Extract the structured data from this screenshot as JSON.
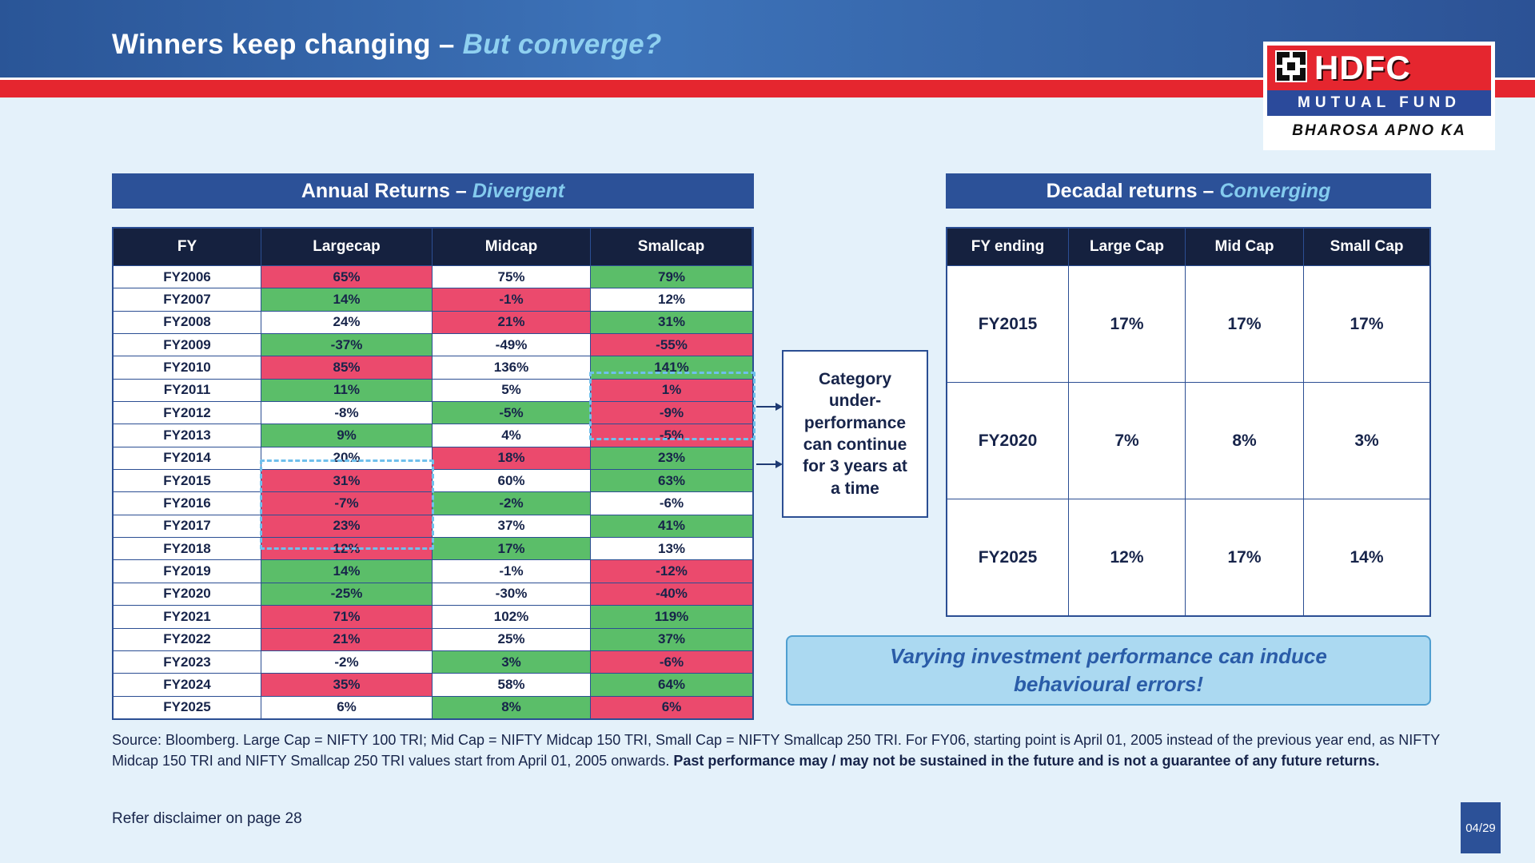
{
  "header": {
    "title_plain": "Winners keep changing – ",
    "title_accent": "But converge?",
    "logo": {
      "line1": "HDFC",
      "line2": "MUTUAL FUND",
      "line3": "BHAROSA APNO KA"
    }
  },
  "annual_table": {
    "title_plain": "Annual Returns –",
    "title_accent": "Divergent",
    "columns": [
      "FY",
      "Largecap",
      "Midcap",
      "Smallcap"
    ],
    "rows": [
      {
        "fy": "FY2006",
        "values": [
          "65%",
          "75%",
          "79%"
        ],
        "tones": [
          "red",
          "white",
          "green"
        ]
      },
      {
        "fy": "FY2007",
        "values": [
          "14%",
          "-1%",
          "12%"
        ],
        "tones": [
          "green",
          "red",
          "white"
        ]
      },
      {
        "fy": "FY2008",
        "values": [
          "24%",
          "21%",
          "31%"
        ],
        "tones": [
          "white",
          "red",
          "green"
        ]
      },
      {
        "fy": "FY2009",
        "values": [
          "-37%",
          "-49%",
          "-55%"
        ],
        "tones": [
          "green",
          "white",
          "red"
        ]
      },
      {
        "fy": "FY2010",
        "values": [
          "85%",
          "136%",
          "141%"
        ],
        "tones": [
          "red",
          "white",
          "green"
        ]
      },
      {
        "fy": "FY2011",
        "values": [
          "11%",
          "5%",
          "1%"
        ],
        "tones": [
          "green",
          "white",
          "red"
        ]
      },
      {
        "fy": "FY2012",
        "values": [
          "-8%",
          "-5%",
          "-9%"
        ],
        "tones": [
          "white",
          "green",
          "red"
        ]
      },
      {
        "fy": "FY2013",
        "values": [
          "9%",
          "4%",
          "-5%"
        ],
        "tones": [
          "green",
          "white",
          "red"
        ]
      },
      {
        "fy": "FY2014",
        "values": [
          "20%",
          "18%",
          "23%"
        ],
        "tones": [
          "white",
          "red",
          "green"
        ]
      },
      {
        "fy": "FY2015",
        "values": [
          "31%",
          "60%",
          "63%"
        ],
        "tones": [
          "red",
          "white",
          "green"
        ]
      },
      {
        "fy": "FY2016",
        "values": [
          "-7%",
          "-2%",
          "-6%"
        ],
        "tones": [
          "red",
          "green",
          "white"
        ]
      },
      {
        "fy": "FY2017",
        "values": [
          "23%",
          "37%",
          "41%"
        ],
        "tones": [
          "red",
          "white",
          "green"
        ]
      },
      {
        "fy": "FY2018",
        "values": [
          "12%",
          "17%",
          "13%"
        ],
        "tones": [
          "red",
          "green",
          "white"
        ]
      },
      {
        "fy": "FY2019",
        "values": [
          "14%",
          "-1%",
          "-12%"
        ],
        "tones": [
          "green",
          "white",
          "red"
        ]
      },
      {
        "fy": "FY2020",
        "values": [
          "-25%",
          "-30%",
          "-40%"
        ],
        "tones": [
          "green",
          "white",
          "red"
        ]
      },
      {
        "fy": "FY2021",
        "values": [
          "71%",
          "102%",
          "119%"
        ],
        "tones": [
          "red",
          "white",
          "green"
        ]
      },
      {
        "fy": "FY2022",
        "values": [
          "21%",
          "25%",
          "37%"
        ],
        "tones": [
          "red",
          "white",
          "green"
        ]
      },
      {
        "fy": "FY2023",
        "values": [
          "-2%",
          "3%",
          "-6%"
        ],
        "tones": [
          "white",
          "green",
          "red"
        ]
      },
      {
        "fy": "FY2024",
        "values": [
          "35%",
          "58%",
          "64%"
        ],
        "tones": [
          "red",
          "white",
          "green"
        ]
      },
      {
        "fy": "FY2025",
        "values": [
          "6%",
          "8%",
          "6%"
        ],
        "tones": [
          "white",
          "green",
          "red"
        ]
      }
    ]
  },
  "decadal_table": {
    "title_plain": "Decadal returns –",
    "title_accent": "Converging",
    "columns": [
      "FY ending",
      "Large Cap",
      "Mid Cap",
      "Small Cap"
    ],
    "rows": [
      {
        "fy": "FY2015",
        "values": [
          "17%",
          "17%",
          "17%"
        ]
      },
      {
        "fy": "FY2020",
        "values": [
          "7%",
          "8%",
          "3%"
        ]
      },
      {
        "fy": "FY2025",
        "values": [
          "12%",
          "17%",
          "14%"
        ]
      }
    ]
  },
  "callout": {
    "text": "Category\nunder-\nperformance\ncan continue\nfor 3 years at\na time"
  },
  "note_box": {
    "text": "Varying investment performance can induce\nbehavioural errors!"
  },
  "footnote": {
    "normal": "Source: Bloomberg. Large Cap = NIFTY 100 TRI; Mid Cap = NIFTY Midcap 150 TRI, Small Cap = NIFTY Smallcap 250 TRI. For FY06, starting point is April 01, 2005 instead of the previous year end, as NIFTY Midcap 150 TRI and NIFTY Smallcap 250 TRI values start from April 01, 2005 onwards. ",
    "bold": "Past performance may / may not be sustained in the future and is not a guarantee of any future returns."
  },
  "footer": {
    "disclaimer": "Refer disclaimer on page 28",
    "page": "04/29"
  },
  "colors": {
    "cell_red": "#EB4A6D",
    "cell_green": "#5BBE69",
    "cell_white": "#FFFFFF",
    "header_navy": "#15213F",
    "bar_blue": "#2C5198",
    "accent_light_blue": "#84CBEE",
    "stripe_red": "#E5262F",
    "note_bg": "#ABD9F1",
    "note_text": "#2A5CA8",
    "dashed_highlight": "#6FC0EC"
  }
}
